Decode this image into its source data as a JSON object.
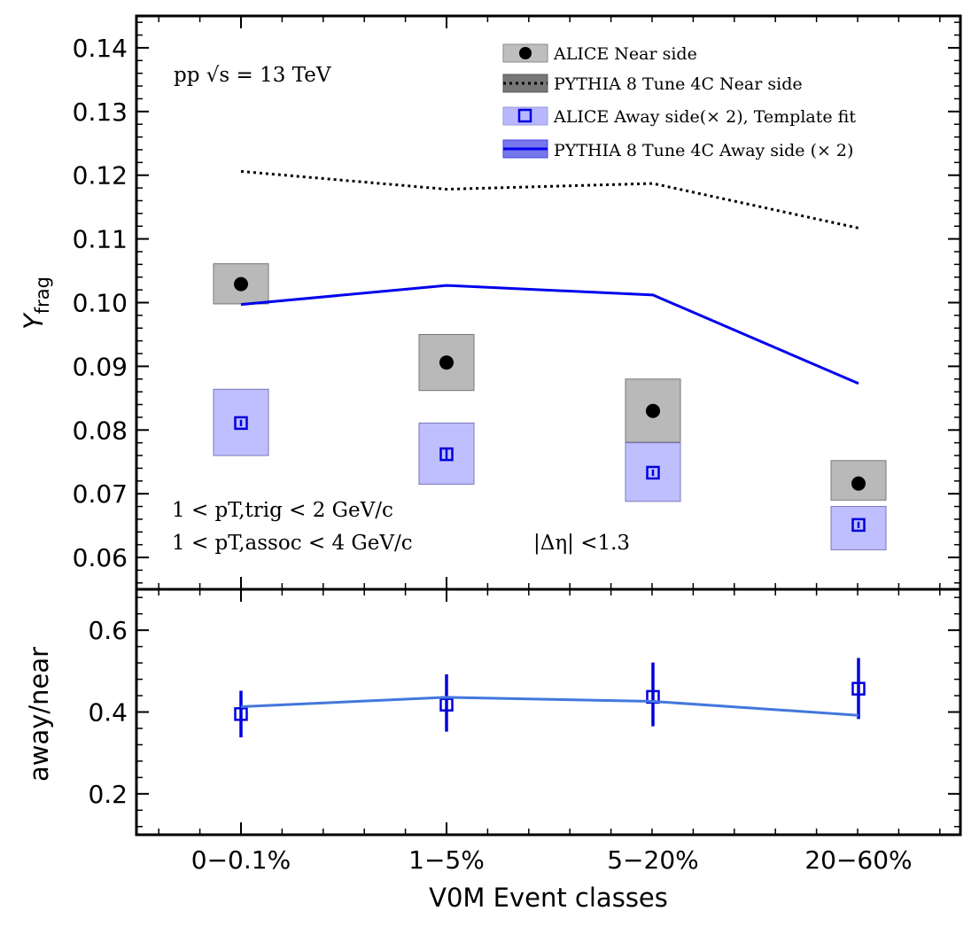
{
  "chart_data": [
    {
      "panel": "top",
      "type": "line",
      "categories": [
        "0−0.1%",
        "1−5%",
        "5−20%",
        "20−60%"
      ],
      "ylabel": "Y",
      "ylabel_sub": "frag",
      "ylim": [
        0.055,
        0.145
      ],
      "yticks": [
        "0.06",
        "0.07",
        "0.08",
        "0.09",
        "0.10",
        "0.11",
        "0.12",
        "0.13",
        "0.14"
      ],
      "ytick_values": [
        0.06,
        0.07,
        0.08,
        0.09,
        0.1,
        0.11,
        0.12,
        0.13,
        0.14
      ],
      "system_label": "pp √s = 13 TeV",
      "cuts": [
        "1 < pT,trig < 2 GeV/c",
        "1 < pT,assoc < 4 GeV/c"
      ],
      "eta_cut": "|Δη| <1.3",
      "series": [
        {
          "name": "ALICE Near side",
          "kind": "points",
          "values": [
            0.1029,
            0.0906,
            0.083,
            0.0716
          ],
          "sys_low": [
            0.0998,
            0.0862,
            0.0781,
            0.069
          ],
          "sys_high": [
            0.1061,
            0.095,
            0.088,
            0.0752
          ],
          "color": "#000000"
        },
        {
          "name": "PYTHIA 8 Tune 4C Near side",
          "kind": "line",
          "values": [
            0.1206,
            0.1178,
            0.1187,
            0.1117
          ],
          "color": "#000000"
        },
        {
          "name": "ALICE Away side(× 2), Template fit",
          "kind": "points",
          "values": [
            0.0811,
            0.0762,
            0.0733,
            0.0651
          ],
          "stat_low": [
            0.0806,
            0.0752,
            0.0728,
            0.0646
          ],
          "stat_high": [
            0.0816,
            0.0772,
            0.0738,
            0.0656
          ],
          "sys_low": [
            0.076,
            0.0715,
            0.0688,
            0.0612
          ],
          "sys_high": [
            0.0864,
            0.0811,
            0.078,
            0.068
          ],
          "color": "#0000dd"
        },
        {
          "name": "PYTHIA 8 Tune 4C Away side (× 2)",
          "kind": "line",
          "values": [
            0.0997,
            0.1027,
            0.1012,
            0.0873
          ],
          "color": "#0000ee"
        }
      ]
    },
    {
      "panel": "bottom",
      "type": "line",
      "categories": [
        "0−0.1%",
        "1−5%",
        "5−20%",
        "20−60%"
      ],
      "xlabel": "V0M Event classes",
      "ylabel": "away/near",
      "ylim": [
        0.1,
        0.7
      ],
      "yticks": [
        "0.2",
        "0.4",
        "0.6"
      ],
      "ytick_values": [
        0.2,
        0.4,
        0.6
      ],
      "series": [
        {
          "name": "",
          "kind": "points",
          "values": [
            0.395,
            0.418,
            0.437,
            0.457
          ],
          "err_low": [
            0.338,
            0.352,
            0.365,
            0.383
          ],
          "err_high": [
            0.452,
            0.492,
            0.521,
            0.532
          ],
          "color": "#0000dd"
        },
        {
          "name": "",
          "kind": "line",
          "values": [
            0.413,
            0.436,
            0.426,
            0.392
          ],
          "color": "#4477dd"
        }
      ]
    }
  ]
}
